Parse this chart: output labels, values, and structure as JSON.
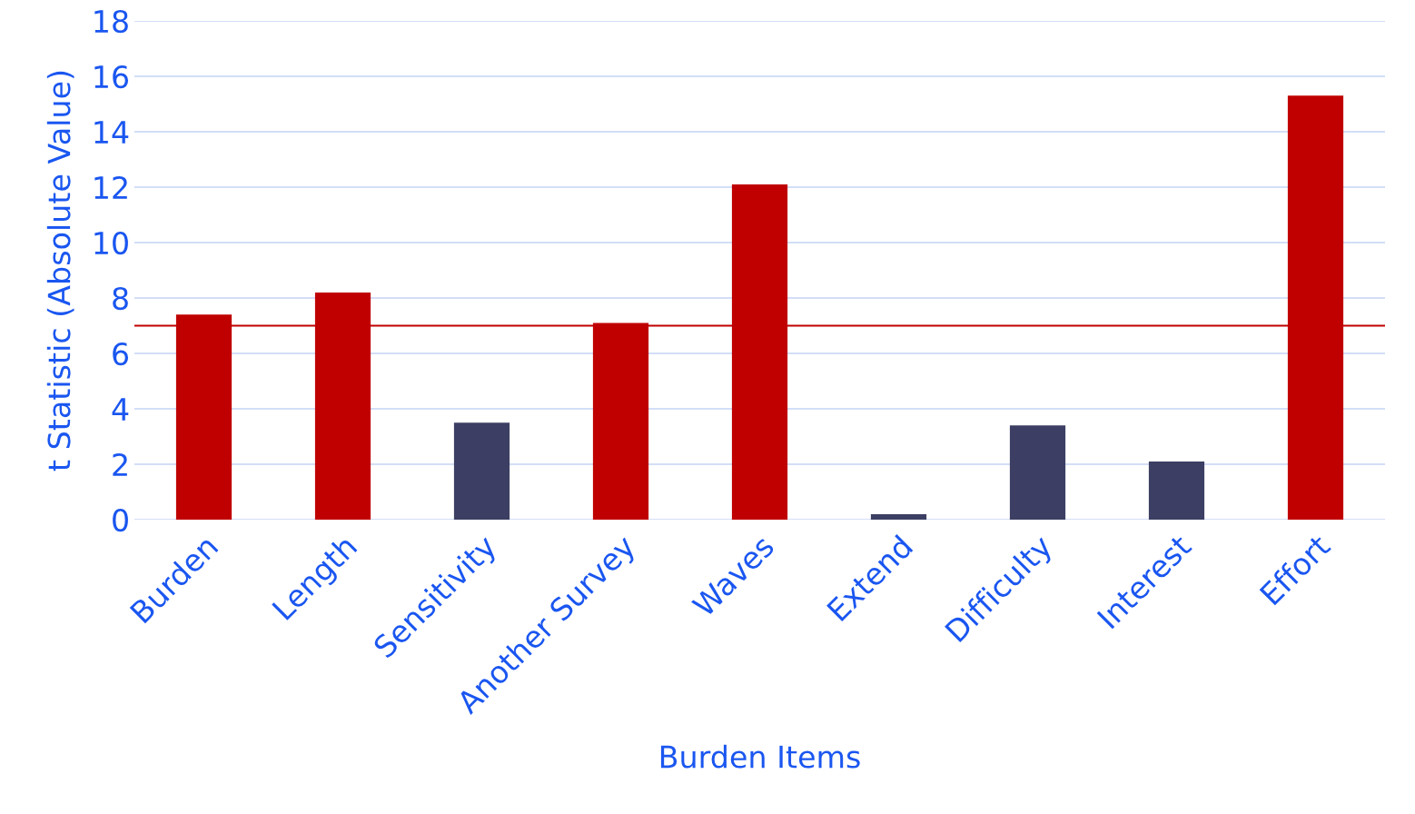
{
  "chart_data": {
    "type": "bar",
    "xlabel": "Burden Items",
    "ylabel": "t Statistic (Absolute Value)",
    "categories": [
      "Burden",
      "Length",
      "Sensitivity",
      "Another Survey",
      "Waves",
      "Extend",
      "Difficulty",
      "Interest",
      "Effort"
    ],
    "values": [
      7.4,
      8.2,
      3.5,
      7.1,
      12.1,
      0.2,
      3.4,
      2.1,
      15.3
    ],
    "colors": [
      "#c00000",
      "#c00000",
      "#3c3f63",
      "#c00000",
      "#c00000",
      "#3c3f63",
      "#3c3f63",
      "#3c3f63",
      "#c00000"
    ],
    "ylim": [
      0,
      18
    ],
    "yticks": [
      0,
      2,
      4,
      6,
      8,
      10,
      12,
      14,
      16,
      18
    ],
    "grid": "y",
    "ref_lines": [
      {
        "axis": "y",
        "value": 7,
        "color": "#c00000"
      }
    ]
  }
}
